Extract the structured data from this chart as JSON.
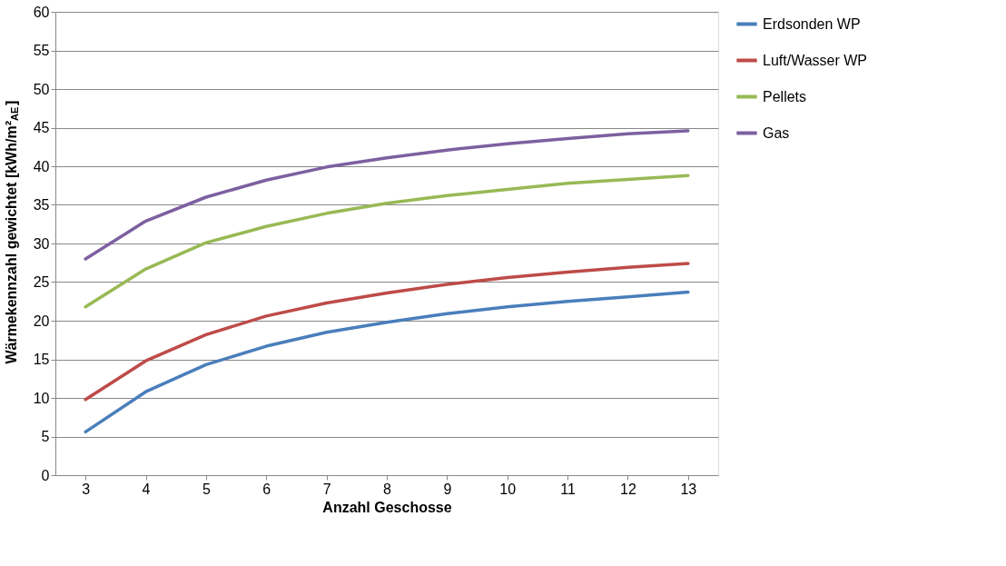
{
  "chart_data": {
    "type": "line",
    "xlabel": "Anzahl Geschosse",
    "ylabel": "Wärmekennzahl gewichtet [kWh/m²$_{AE}$]",
    "categories": [
      "3",
      "4",
      "5",
      "6",
      "7",
      "8",
      "9",
      "10",
      "11",
      "12",
      "13"
    ],
    "series": [
      {
        "name": "Erdsonden WP",
        "color": "#4a7ebb",
        "values": [
          5.6,
          10.8,
          14.3,
          16.7,
          18.5,
          19.8,
          20.9,
          21.8,
          22.5,
          23.1,
          23.7
        ]
      },
      {
        "name": "Luft/Wasser WP",
        "color": "#be4b48",
        "values": [
          9.8,
          14.8,
          18.2,
          20.6,
          22.3,
          23.6,
          24.7,
          25.6,
          26.3,
          26.9,
          27.4
        ]
      },
      {
        "name": "Pellets",
        "color": "#98b954",
        "values": [
          21.8,
          26.7,
          30.1,
          32.2,
          33.9,
          35.2,
          36.2,
          37.0,
          37.8,
          38.3,
          38.8
        ]
      },
      {
        "name": "Gas",
        "color": "#7d60a0",
        "values": [
          28.0,
          32.9,
          36.0,
          38.2,
          39.9,
          41.1,
          42.1,
          42.9,
          43.6,
          44.2,
          44.6
        ]
      }
    ],
    "ylim": [
      0,
      60
    ],
    "yticks": [
      0,
      5,
      10,
      15,
      20,
      25,
      30,
      35,
      40,
      45,
      50,
      55,
      60
    ],
    "grid": "y",
    "legend": "right"
  }
}
